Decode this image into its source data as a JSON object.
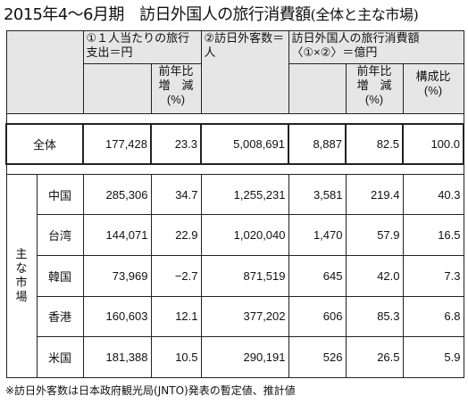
{
  "title": {
    "main": "2015年4〜6月期　訪日外国人の旅行消費額",
    "sub": "(全体と主な市場)"
  },
  "header": {
    "col1": "①１人当たりの旅行支出＝円",
    "col1_yoy": [
      "前年比",
      "増　減",
      "(%)"
    ],
    "col2": "②訪日外客数＝人",
    "col3": "訪日外国人の旅行消費額〈①×②〉＝億円",
    "col3_yoy": [
      "前年比",
      "増　減",
      "(%)"
    ],
    "col3_share": [
      "構成比",
      "(%)"
    ]
  },
  "total": {
    "label": "全体",
    "spend": "177,428",
    "spend_yoy": "23.3",
    "visitors": "5,008,691",
    "consumption": "8,887",
    "consumption_yoy": "82.5",
    "share": "100.0"
  },
  "major_markets_label": [
    "主",
    "な",
    "市",
    "場"
  ],
  "rows": [
    {
      "name": "中国",
      "spend": "285,306",
      "spend_yoy": "34.7",
      "visitors": "1,255,231",
      "consumption": "3,581",
      "consumption_yoy": "219.4",
      "share": "40.3"
    },
    {
      "name": "台湾",
      "spend": "144,071",
      "spend_yoy": "22.9",
      "visitors": "1,020,040",
      "consumption": "1,470",
      "consumption_yoy": "57.9",
      "share": "16.5"
    },
    {
      "name": "韓国",
      "spend": "73,969",
      "spend_yoy": "−2.7",
      "visitors": "871,519",
      "consumption": "645",
      "consumption_yoy": "42.0",
      "share": "7.3"
    },
    {
      "name": "香港",
      "spend": "160,603",
      "spend_yoy": "12.1",
      "visitors": "377,202",
      "consumption": "606",
      "consumption_yoy": "85.3",
      "share": "6.8"
    },
    {
      "name": "米国",
      "spend": "181,388",
      "spend_yoy": "10.5",
      "visitors": "290,191",
      "consumption": "526",
      "consumption_yoy": "26.5",
      "share": "5.9"
    }
  ],
  "footnote": "※訪日外客数は日本政府観光局(JNTO)発表の暫定値、推計値",
  "colors": {
    "header_bg": "#e6e6e6",
    "border": "#222222"
  }
}
